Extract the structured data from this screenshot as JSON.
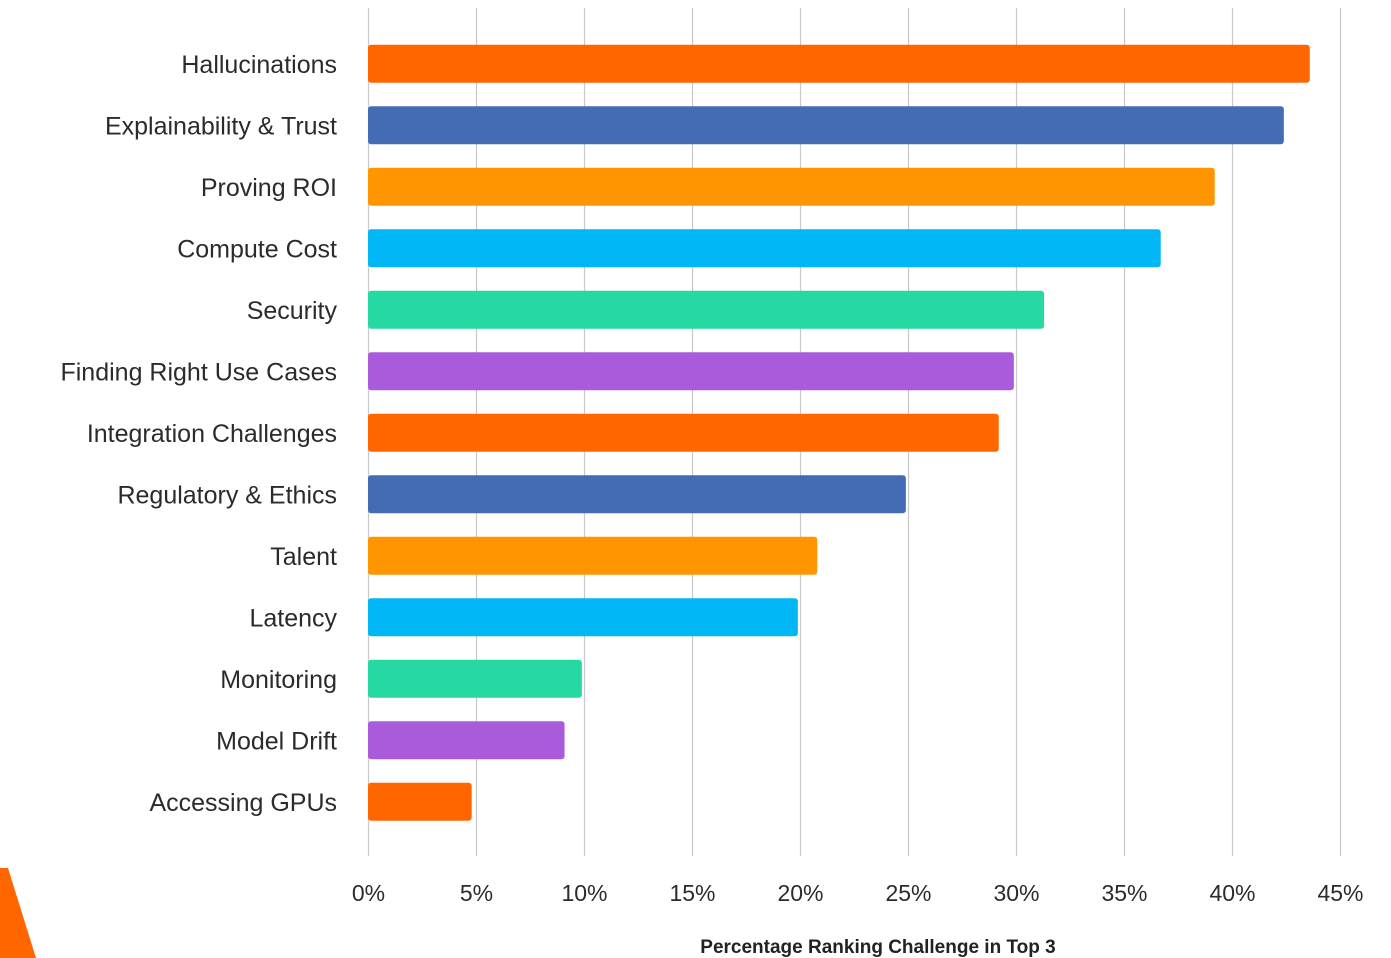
{
  "chart_data": {
    "type": "bar",
    "orientation": "horizontal",
    "title": "",
    "xlabel": "Percentage Ranking Challenge in Top 3",
    "ylabel": "",
    "xlim": [
      0,
      45
    ],
    "x_tick_labels": [
      "0%",
      "5%",
      "10%",
      "15%",
      "20%",
      "25%",
      "30%",
      "35%",
      "40%",
      "45%"
    ],
    "x_tick_values": [
      0,
      5,
      10,
      15,
      20,
      25,
      30,
      35,
      40,
      45
    ],
    "grid": "vertical",
    "legend": "none",
    "categories": [
      "Hallucinations",
      "Explainability & Trust",
      "Proving ROI",
      "Compute Cost",
      "Security",
      "Finding Right Use Cases",
      "Integration Challenges",
      "Regulatory & Ethics",
      "Talent",
      "Latency",
      "Monitoring",
      "Model Drift",
      "Accessing GPUs"
    ],
    "values": [
      43.6,
      42.4,
      39.2,
      36.7,
      31.3,
      29.9,
      29.2,
      24.9,
      20.8,
      19.9,
      9.9,
      9.1,
      4.8
    ],
    "colors": [
      "#ff6600",
      "#436cb4",
      "#ff9500",
      "#00b6f4",
      "#26d8a2",
      "#aa5bdc",
      "#ff6600",
      "#436cb4",
      "#ff9500",
      "#00b6f4",
      "#26d8a2",
      "#aa5bdc",
      "#ff6600"
    ]
  },
  "decoration": {
    "corner_accent_color": "#ff6600"
  }
}
